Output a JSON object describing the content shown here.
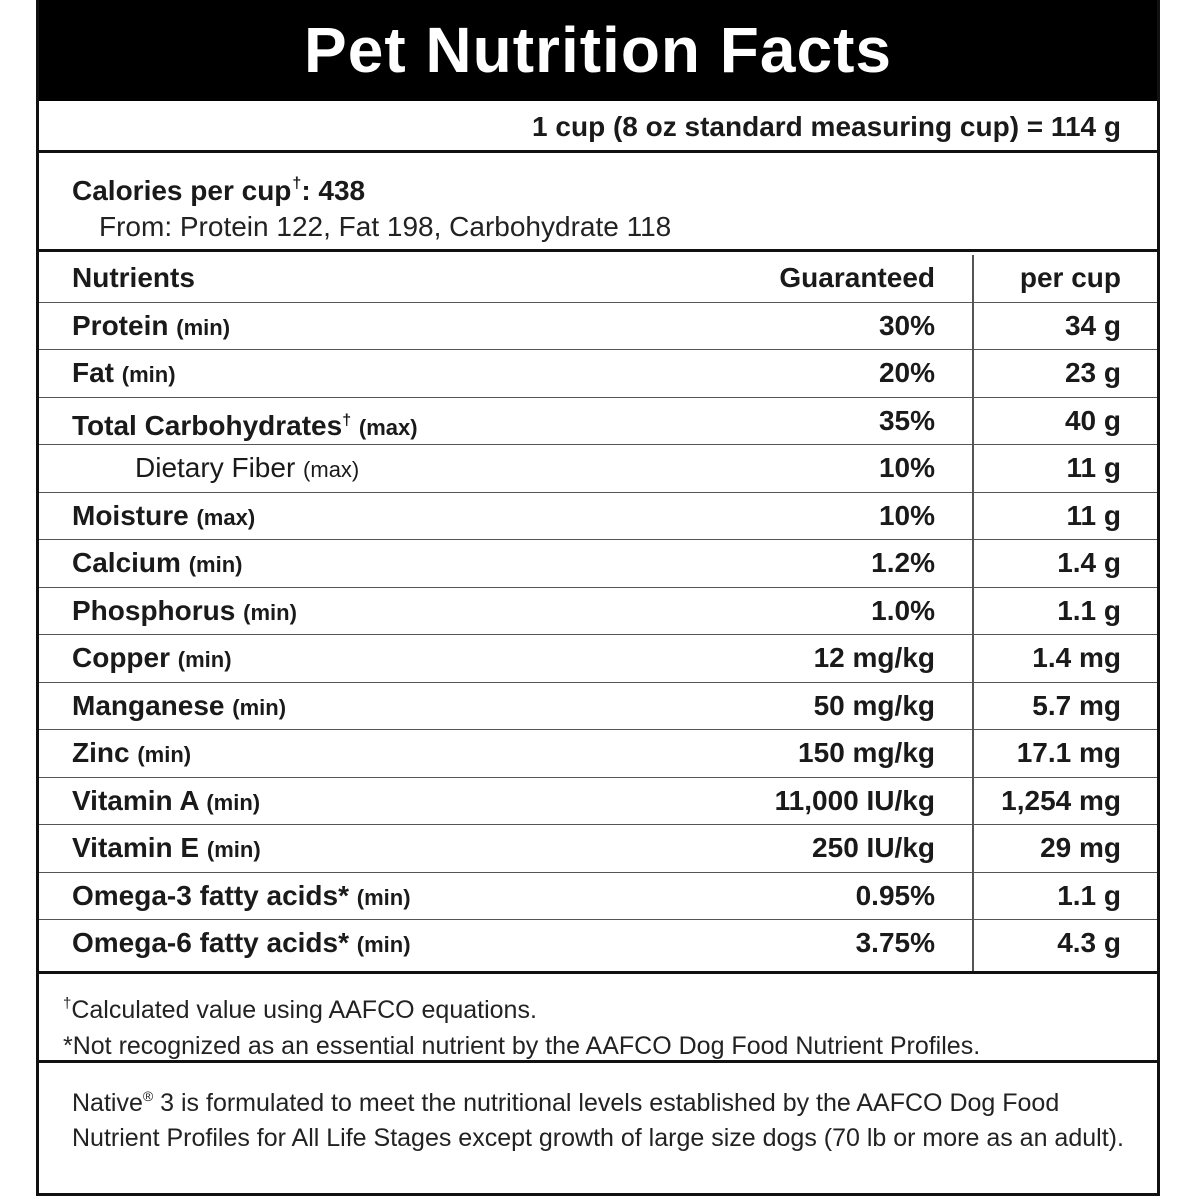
{
  "title": "Pet Nutrition Facts",
  "serving": "1 cup (8 oz standard measuring cup) = 114 g",
  "calories": {
    "label": "Calories per cup",
    "marker": "†",
    "value": ": 438",
    "from": "From: Protein 122, Fat 198, Carbohydrate 118"
  },
  "table": {
    "header": {
      "nutrients": "Nutrients",
      "guaranteed": "Guaranteed",
      "per_cup": "per cup"
    },
    "rows": [
      {
        "name": "Protein",
        "qualifier": "(min)",
        "guaranteed": "30%",
        "per_cup": "34 g"
      },
      {
        "name": "Fat",
        "qualifier": "(min)",
        "guaranteed": "20%",
        "per_cup": "23 g"
      },
      {
        "name": "Total Carbohydrates",
        "marker": "†",
        "qualifier": "(max)",
        "guaranteed": "35%",
        "per_cup": "40 g"
      },
      {
        "name": "Dietary Fiber",
        "qualifier": "(max)",
        "guaranteed": "10%",
        "per_cup": "11 g"
      },
      {
        "name": "Moisture",
        "qualifier": "(max)",
        "guaranteed": "10%",
        "per_cup": "11 g"
      },
      {
        "name": "Calcium",
        "qualifier": "(min)",
        "guaranteed": "1.2%",
        "per_cup": "1.4 g"
      },
      {
        "name": "Phosphorus",
        "qualifier": "(min)",
        "guaranteed": "1.0%",
        "per_cup": "1.1 g"
      },
      {
        "name": "Copper",
        "qualifier": "(min)",
        "guaranteed": "12 mg/kg",
        "per_cup": "1.4 mg"
      },
      {
        "name": "Manganese",
        "qualifier": "(min)",
        "guaranteed": "50 mg/kg",
        "per_cup": "5.7 mg"
      },
      {
        "name": "Zinc",
        "qualifier": "(min)",
        "guaranteed": "150 mg/kg",
        "per_cup": "17.1 mg"
      },
      {
        "name": "Vitamin A",
        "qualifier": "(min)",
        "guaranteed": "11,000 IU/kg",
        "per_cup": "1,254 mg"
      },
      {
        "name": "Vitamin E",
        "qualifier": "(min)",
        "guaranteed": "250 IU/kg",
        "per_cup": "29 mg"
      },
      {
        "name": "Omega-3 fatty acids*",
        "qualifier": "(min)",
        "guaranteed": "0.95%",
        "per_cup": "1.1 g"
      },
      {
        "name": "Omega-6 fatty acids*",
        "qualifier": "(min)",
        "guaranteed": "3.75%",
        "per_cup": "4.3 g"
      }
    ]
  },
  "footnotes": {
    "dagger_marker": "†",
    "dagger": "Calculated value using AAFCO equations.",
    "asterisk": "*Not recognized as an essential nutrient by the AAFCO Dog Food Nutrient Profiles."
  },
  "statement": {
    "brand": "Native",
    "reg": "®",
    "text": " 3 is formulated to meet the nutritional levels established by the AAFCO Dog Food Nutrient Profiles for All Life Stages except growth of large size dogs (70 lb or more as an adult)."
  }
}
